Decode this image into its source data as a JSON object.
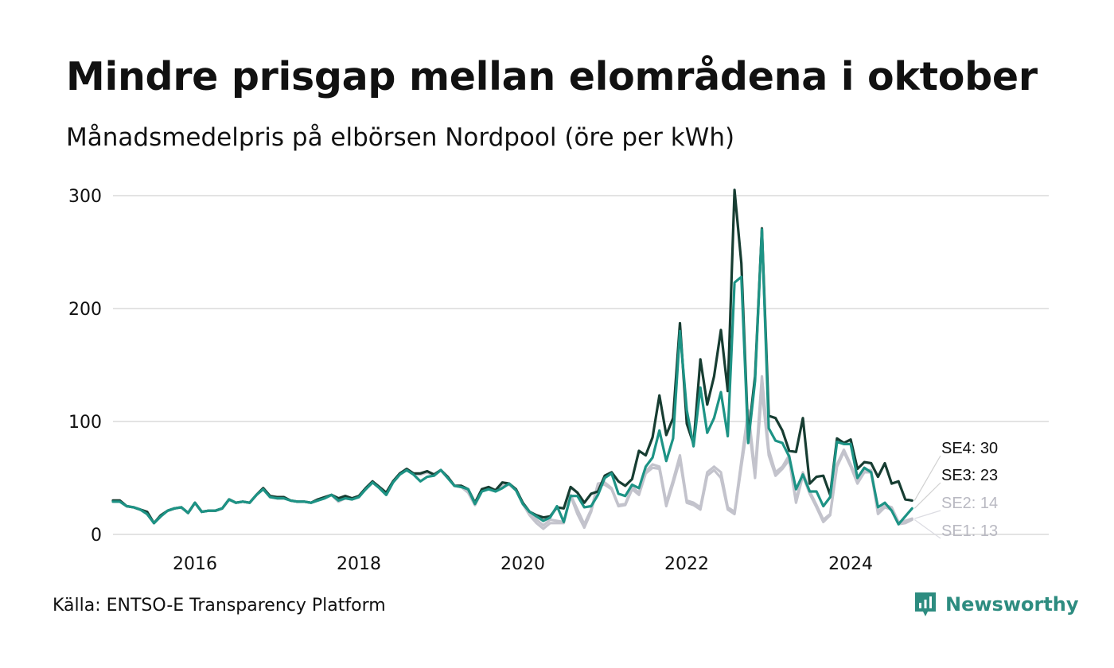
{
  "title": "Mindre prisgap mellan elområdena i oktober",
  "subtitle": "Månadsmedelpris på elbörsen Nordpool (öre per kWh)",
  "source": "Källa: ENTSO-E Transparency Platform",
  "brand": {
    "name": "Newsworthy",
    "icon": "newsworthy-logo-icon",
    "color": "#2d8c80"
  },
  "chart_data": {
    "type": "line",
    "title": "",
    "xlabel": "",
    "ylabel": "",
    "x_start": "2015-01",
    "x_step": "month",
    "xlim": [
      "2015-01",
      "2026-06"
    ],
    "ylim": [
      0,
      300
    ],
    "yticks": [
      0,
      100,
      200,
      300
    ],
    "xticks": [
      2016,
      2018,
      2020,
      2022,
      2024
    ],
    "grid": "horizontal",
    "legend": "end-of-line labels",
    "end_labels": [
      "SE4: 30",
      "SE3: 23",
      "SE2: 14",
      "SE1: 13"
    ],
    "series": [
      {
        "name": "SE1",
        "color": "#c3c3cc",
        "values": [
          29,
          29,
          25,
          24,
          22,
          18,
          10,
          16,
          21,
          23,
          24,
          19,
          28,
          20,
          21,
          21,
          23,
          31,
          28,
          29,
          28,
          35,
          40,
          33,
          32,
          32,
          30,
          29,
          29,
          28,
          30,
          32,
          35,
          29,
          32,
          31,
          33,
          40,
          46,
          41,
          35,
          46,
          53,
          57,
          53,
          53,
          55,
          52,
          57,
          50,
          43,
          42,
          37,
          26,
          38,
          41,
          39,
          43,
          44,
          39,
          27,
          17,
          10,
          5,
          10,
          10,
          10,
          34,
          18,
          6,
          20,
          44,
          44,
          40,
          25,
          26,
          40,
          35,
          54,
          59,
          58,
          25,
          45,
          66,
          28,
          26,
          22,
          52,
          57,
          50,
          22,
          18,
          60,
          101,
          50,
          128,
          70,
          52,
          58,
          66,
          28,
          52,
          36,
          24,
          11,
          17,
          60,
          73,
          60,
          45,
          55,
          55,
          18,
          24,
          22,
          9,
          10,
          13
        ]
      },
      {
        "name": "SE2",
        "color": "#c3c3cc",
        "values": [
          29,
          29,
          25,
          24,
          22,
          18,
          10,
          16,
          21,
          23,
          24,
          19,
          28,
          20,
          21,
          21,
          23,
          31,
          28,
          29,
          28,
          35,
          40,
          33,
          32,
          32,
          30,
          29,
          29,
          28,
          30,
          32,
          35,
          29,
          32,
          31,
          33,
          40,
          46,
          41,
          35,
          46,
          53,
          57,
          53,
          53,
          55,
          52,
          57,
          50,
          43,
          42,
          37,
          26,
          38,
          41,
          39,
          43,
          44,
          39,
          27,
          19,
          13,
          8,
          13,
          12,
          11,
          35,
          22,
          9,
          22,
          45,
          46,
          41,
          26,
          27,
          42,
          37,
          56,
          62,
          60,
          28,
          48,
          70,
          30,
          28,
          24,
          55,
          60,
          55,
          24,
          20,
          65,
          110,
          55,
          140,
          75,
          55,
          60,
          70,
          30,
          55,
          38,
          26,
          13,
          18,
          62,
          75,
          62,
          47,
          57,
          57,
          20,
          26,
          24,
          11,
          12,
          14
        ]
      },
      {
        "name": "SE3",
        "color": "#1d9385",
        "values": [
          29,
          29,
          25,
          24,
          22,
          18,
          10,
          16,
          21,
          23,
          24,
          19,
          28,
          20,
          21,
          21,
          23,
          31,
          28,
          29,
          28,
          35,
          40,
          33,
          32,
          32,
          30,
          29,
          29,
          28,
          30,
          32,
          35,
          30,
          32,
          31,
          33,
          40,
          46,
          41,
          35,
          46,
          53,
          57,
          53,
          47,
          51,
          52,
          57,
          50,
          43,
          42,
          40,
          27,
          38,
          40,
          38,
          41,
          45,
          39,
          27,
          20,
          16,
          12,
          15,
          25,
          11,
          34,
          34,
          24,
          25,
          35,
          50,
          54,
          36,
          34,
          44,
          41,
          60,
          68,
          92,
          65,
          85,
          180,
          110,
          78,
          130,
          90,
          103,
          126,
          87,
          223,
          228,
          81,
          136,
          270,
          94,
          83,
          81,
          69,
          40,
          53,
          38,
          38,
          25,
          33,
          82,
          80,
          80,
          50,
          59,
          55,
          24,
          28,
          21,
          9,
          16,
          23
        ]
      },
      {
        "name": "SE4",
        "color": "#173d32",
        "values": [
          30,
          30,
          25,
          24,
          22,
          20,
          10,
          17,
          21,
          23,
          24,
          19,
          28,
          20,
          21,
          21,
          23,
          31,
          28,
          29,
          28,
          35,
          41,
          34,
          33,
          33,
          30,
          29,
          29,
          28,
          31,
          33,
          35,
          32,
          34,
          32,
          34,
          41,
          47,
          42,
          37,
          47,
          54,
          58,
          54,
          54,
          56,
          53,
          57,
          51,
          43,
          43,
          40,
          28,
          40,
          42,
          39,
          46,
          45,
          40,
          28,
          20,
          17,
          15,
          16,
          24,
          23,
          42,
          37,
          28,
          36,
          38,
          52,
          55,
          47,
          43,
          49,
          74,
          70,
          86,
          123,
          88,
          103,
          187,
          98,
          80,
          155,
          115,
          140,
          181,
          127,
          305,
          240,
          86,
          140,
          271,
          105,
          103,
          92,
          74,
          73,
          103,
          45,
          51,
          52,
          35,
          85,
          81,
          84,
          58,
          64,
          63,
          51,
          63,
          45,
          47,
          31,
          30
        ]
      }
    ]
  }
}
